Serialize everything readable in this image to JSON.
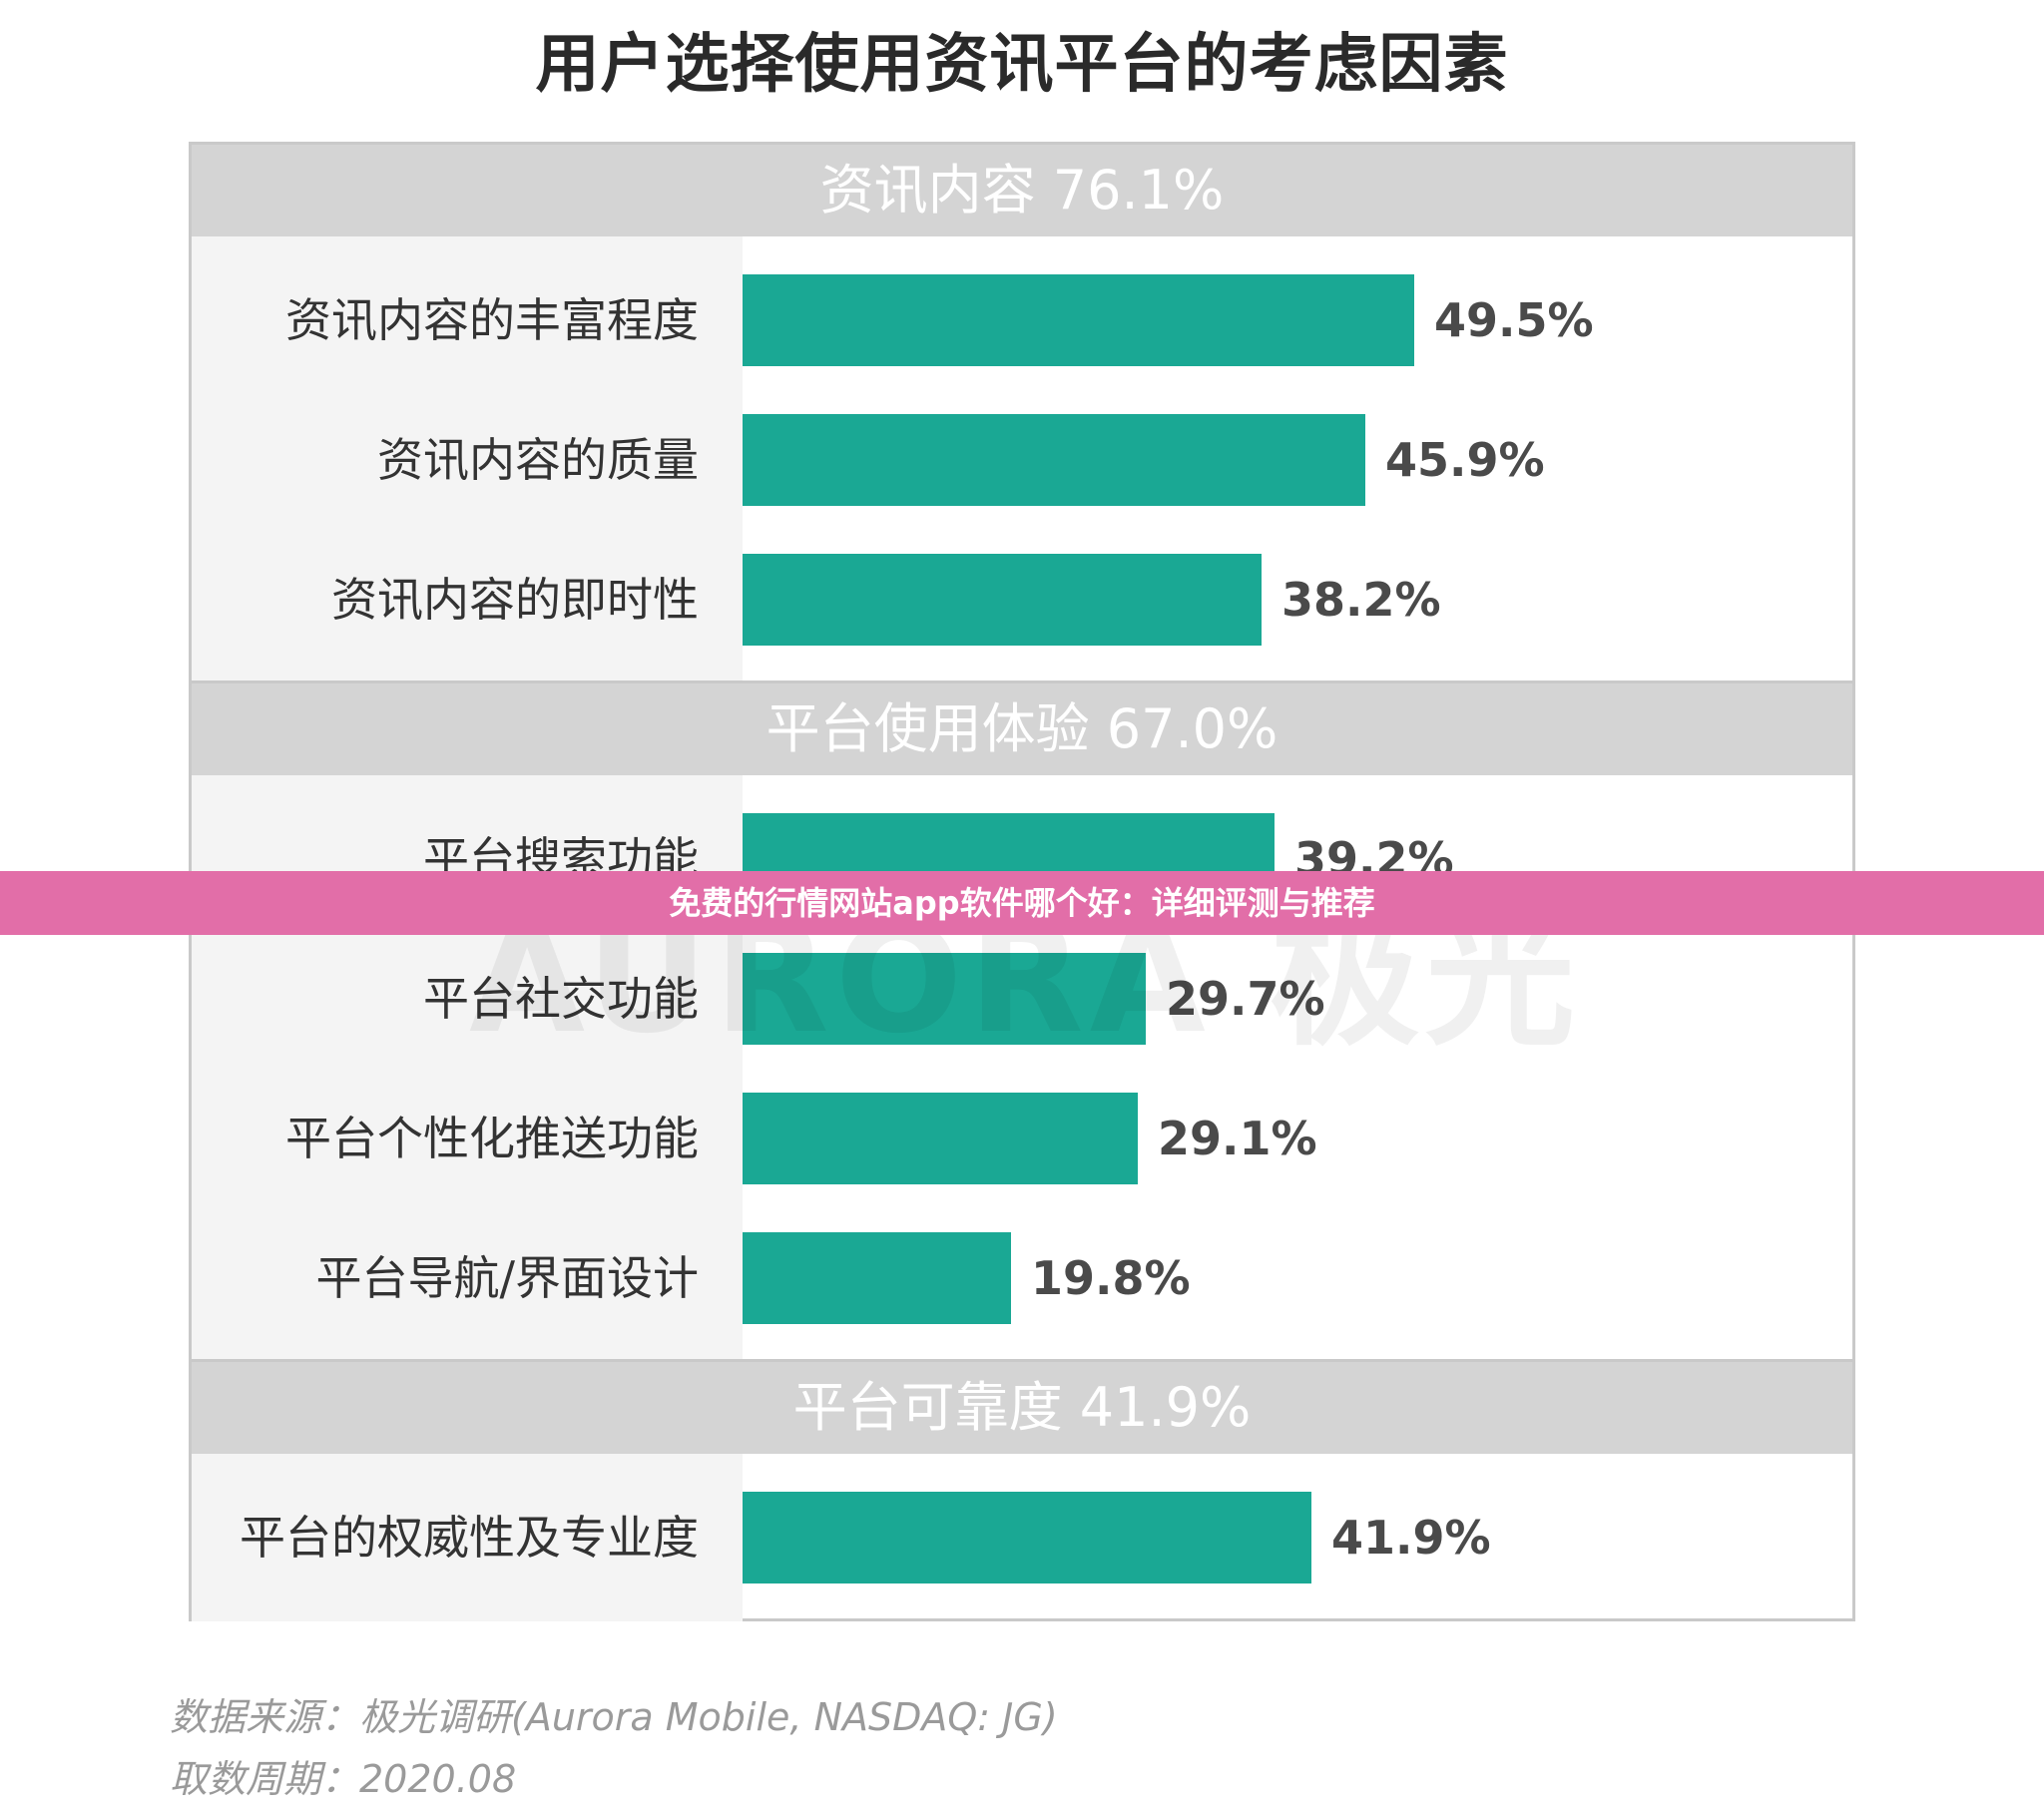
{
  "banner_text": "免费的行情网站app软件哪个好：详细评测与推荐",
  "watermark_text": "AURORA 极光",
  "source_line": "数据来源：极光调研(Aurora Mobile, NASDAQ: JG)",
  "date_line": "取数周期：2020.08",
  "colors": {
    "bar": "#1aa894",
    "section_header": "#d4d4d4",
    "label_column": "#f4f4f4",
    "banner": "#e26ea8"
  },
  "chart_data": {
    "type": "bar",
    "orientation": "horizontal",
    "title": "用户选择使用资讯平台的考虑因素",
    "xlim": [
      0,
      60
    ],
    "grid": false,
    "groups": [
      {
        "label": "资讯内容 76.1%",
        "items": [
          {
            "category": "资讯内容的丰富程度",
            "value": 49.5,
            "label": "49.5%"
          },
          {
            "category": "资讯内容的质量",
            "value": 45.9,
            "label": "45.9%"
          },
          {
            "category": "资讯内容的即时性",
            "value": 38.2,
            "label": "38.2%"
          }
        ]
      },
      {
        "label": "平台使用体验 67.0%",
        "items": [
          {
            "category": "平台搜索功能",
            "value": 39.2,
            "label": "39.2%"
          },
          {
            "category": "平台社交功能",
            "value": 29.7,
            "label": "29.7%"
          },
          {
            "category": "平台个性化推送功能",
            "value": 29.1,
            "label": "29.1%"
          },
          {
            "category": "平台导航/界面设计",
            "value": 19.8,
            "label": "19.8%"
          }
        ]
      },
      {
        "label": "平台可靠度 41.9%",
        "items": [
          {
            "category": "平台的权威性及专业度",
            "value": 41.9,
            "label": "41.9%"
          }
        ]
      }
    ]
  }
}
